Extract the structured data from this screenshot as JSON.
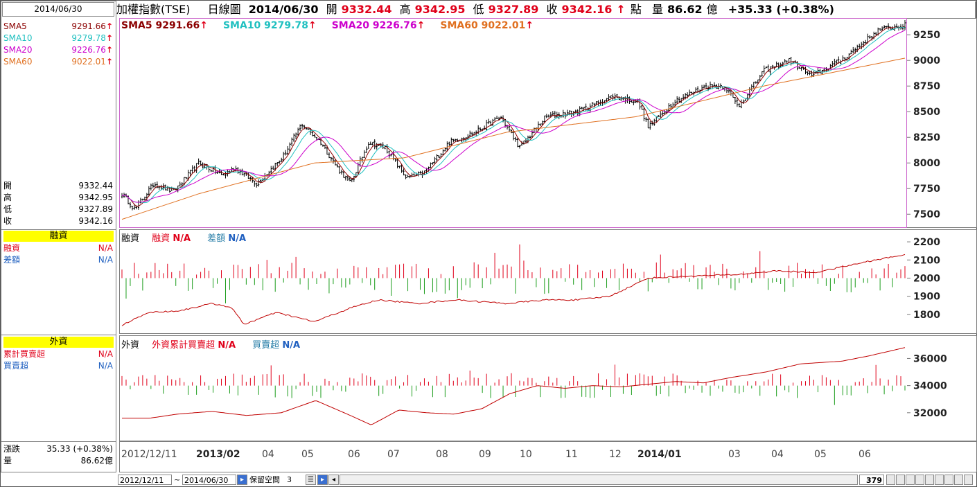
{
  "header": {
    "title": "加權指數(TSE)",
    "chart_mode": "日線圖",
    "date": "2014/06/30",
    "open_label": "開",
    "open": "9332.44",
    "high_label": "高",
    "high": "9342.95",
    "low_label": "低",
    "low": "9327.89",
    "close_label": "收",
    "close": "9342.16",
    "unit": "點",
    "volume_label": "量",
    "volume": "86.62",
    "volume_unit": "億",
    "change": "+35.33 (+0.38%)"
  },
  "left": {
    "date": "2014/06/30",
    "sma": [
      {
        "label": "SMA5",
        "value": "9291.66",
        "color": "#8b0000"
      },
      {
        "label": "SMA10",
        "value": "9279.78",
        "color": "#20c0c0"
      },
      {
        "label": "SMA20",
        "value": "9226.76",
        "color": "#cc00cc"
      },
      {
        "label": "SMA60",
        "value": "9022.01",
        "color": "#e07020"
      }
    ],
    "ohlc": [
      {
        "label": "開",
        "value": "9332.44"
      },
      {
        "label": "高",
        "value": "9342.95"
      },
      {
        "label": "低",
        "value": "9327.89"
      },
      {
        "label": "收",
        "value": "9342.16"
      }
    ],
    "margin_title": "融資",
    "margin_rows": [
      {
        "label": "融資",
        "value": "N/A",
        "color": "#e0001a"
      },
      {
        "label": "差額",
        "value": "N/A",
        "color": "#2060c0"
      }
    ],
    "foreign_title": "外資",
    "foreign_rows": [
      {
        "label": "累計買賣超",
        "value": "N/A",
        "color": "#e0001a"
      },
      {
        "label": "買賣超",
        "value": "N/A",
        "color": "#2060c0"
      }
    ],
    "change_label": "漲跌",
    "change_value": "35.33 (+0.38%)",
    "volume_label": "量",
    "volume_value": "86.62億"
  },
  "price_legend": [
    {
      "label": "SMA5 9291.66",
      "color": "#8b0000"
    },
    {
      "label": "SMA10 9279.78",
      "color": "#20c0c0"
    },
    {
      "label": "SMA20 9226.76",
      "color": "#cc00cc"
    },
    {
      "label": "SMA60 9022.01",
      "color": "#e07020"
    }
  ],
  "margin_legend": {
    "name": "融資",
    "a_label": "融資",
    "a_value": "N/A",
    "b_label": "差額",
    "b_value": "N/A"
  },
  "foreign_legend": {
    "name": "外資",
    "a_label": "外資累計買賣超",
    "a_value": "N/A",
    "b_label": "買賣超",
    "b_value": "N/A"
  },
  "x_labels": [
    {
      "text": "2012/12/11",
      "bold": false
    },
    {
      "text": "2013/02",
      "bold": true
    },
    {
      "text": "04",
      "bold": false
    },
    {
      "text": "05",
      "bold": false
    },
    {
      "text": "06",
      "bold": false
    },
    {
      "text": "07",
      "bold": false
    },
    {
      "text": "08",
      "bold": false
    },
    {
      "text": "09",
      "bold": false
    },
    {
      "text": "10",
      "bold": false
    },
    {
      "text": "11",
      "bold": false
    },
    {
      "text": "12",
      "bold": false
    },
    {
      "text": "2014/01",
      "bold": true
    },
    {
      "text": "03",
      "bold": false
    },
    {
      "text": "04",
      "bold": false
    },
    {
      "text": "05",
      "bold": false
    },
    {
      "text": "06",
      "bold": false
    }
  ],
  "bottom": {
    "start_date": "2012/12/11",
    "tilde": "~",
    "end_date": "2014/06/30",
    "reserve_label": "保留空間",
    "reserve_value": "3",
    "bar_count": "379"
  },
  "chart_data": [
    {
      "type": "candlestick",
      "name": "price",
      "y_ticks": [
        7500,
        7750,
        8000,
        8250,
        8500,
        8750,
        9000,
        9250
      ],
      "ylim": [
        7380,
        9400
      ],
      "anchors": [
        [
          0,
          7700
        ],
        [
          10,
          7550
        ],
        [
          25,
          7800
        ],
        [
          40,
          7720
        ],
        [
          60,
          8000
        ],
        [
          78,
          7880
        ],
        [
          88,
          7950
        ],
        [
          105,
          7800
        ],
        [
          125,
          8050
        ],
        [
          140,
          8380
        ],
        [
          155,
          8200
        ],
        [
          168,
          7950
        ],
        [
          178,
          7800
        ],
        [
          192,
          8200
        ],
        [
          205,
          8150
        ],
        [
          222,
          7850
        ],
        [
          235,
          7900
        ],
        [
          255,
          8200
        ],
        [
          275,
          8300
        ],
        [
          295,
          8450
        ],
        [
          310,
          8150
        ],
        [
          330,
          8450
        ],
        [
          355,
          8500
        ],
        [
          382,
          8650
        ],
        [
          402,
          8600
        ],
        [
          410,
          8350
        ],
        [
          430,
          8600
        ],
        [
          455,
          8750
        ],
        [
          470,
          8750
        ],
        [
          480,
          8550
        ],
        [
          500,
          8900
        ],
        [
          520,
          9000
        ],
        [
          537,
          8850
        ],
        [
          560,
          9000
        ],
        [
          590,
          9300
        ],
        [
          610,
          9342
        ]
      ],
      "sma60_anchors": [
        [
          0,
          7450
        ],
        [
          60,
          7700
        ],
        [
          150,
          8000
        ],
        [
          220,
          8050
        ],
        [
          300,
          8300
        ],
        [
          400,
          8450
        ],
        [
          500,
          8750
        ],
        [
          610,
          9022
        ]
      ]
    },
    {
      "type": "bar+line",
      "name": "margin",
      "y_ticks": [
        1800,
        1900,
        2000,
        2100,
        2200
      ],
      "ylim": [
        1700,
        2250
      ],
      "line_anchors": [
        [
          0,
          1740
        ],
        [
          20,
          1810
        ],
        [
          45,
          1820
        ],
        [
          70,
          1860
        ],
        [
          85,
          1840
        ],
        [
          95,
          1745
        ],
        [
          120,
          1810
        ],
        [
          150,
          1760
        ],
        [
          180,
          1840
        ],
        [
          200,
          1880
        ],
        [
          230,
          1860
        ],
        [
          260,
          1880
        ],
        [
          300,
          1860
        ],
        [
          330,
          1880
        ],
        [
          355,
          1880
        ],
        [
          380,
          1900
        ],
        [
          410,
          2000
        ],
        [
          440,
          2010
        ],
        [
          480,
          2020
        ],
        [
          510,
          2040
        ],
        [
          540,
          2030
        ],
        [
          580,
          2090
        ],
        [
          610,
          2130
        ]
      ]
    },
    {
      "type": "bar+line",
      "name": "foreign",
      "y_ticks": [
        32000,
        34000,
        36000
      ],
      "ylim": [
        30000,
        37400
      ],
      "line_anchors": [
        [
          0,
          31600
        ],
        [
          40,
          31600
        ],
        [
          80,
          31900
        ],
        [
          130,
          32100
        ],
        [
          180,
          31800
        ],
        [
          230,
          32000
        ],
        [
          280,
          32900
        ],
        [
          330,
          31800
        ],
        [
          360,
          31100
        ],
        [
          400,
          32200
        ],
        [
          440,
          32000
        ],
        [
          480,
          31900
        ],
        [
          520,
          32300
        ],
        [
          560,
          33400
        ],
        [
          600,
          34000
        ],
        [
          640,
          33800
        ],
        [
          680,
          34000
        ],
        [
          720,
          33900
        ],
        [
          760,
          34100
        ],
        [
          800,
          34300
        ],
        [
          840,
          34200
        ],
        [
          880,
          34600
        ],
        [
          930,
          35000
        ],
        [
          980,
          35600
        ],
        [
          1040,
          35800
        ],
        [
          1080,
          36200
        ],
        [
          1131,
          36800
        ]
      ]
    }
  ]
}
